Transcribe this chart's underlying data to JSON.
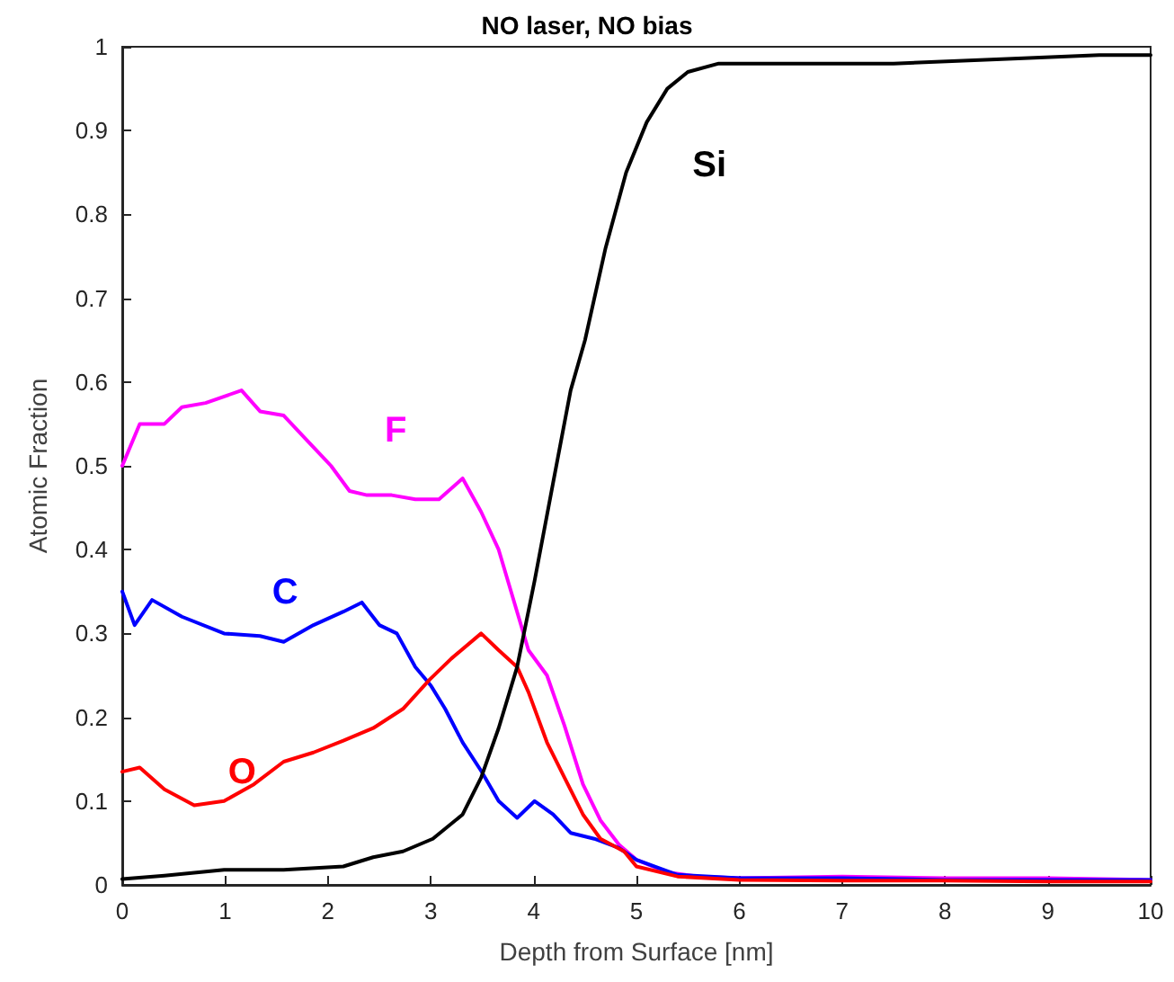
{
  "chart_data": {
    "type": "line",
    "title": "NO laser, NO bias",
    "xlabel": "Depth from Surface [nm]",
    "ylabel": "Atomic Fraction",
    "xlim": [
      0,
      10
    ],
    "xticks": [
      0,
      1,
      2,
      3,
      4,
      5,
      6,
      7,
      8,
      9,
      10
    ],
    "ylim": [
      0,
      1
    ],
    "yticks": [
      0,
      0.1,
      0.2,
      0.3,
      0.4,
      0.5,
      0.6,
      0.7,
      0.8,
      0.9,
      1
    ],
    "grid": false,
    "marker": "none",
    "line_style": "solid",
    "series": [
      {
        "name": "F",
        "color": "#ff00ff",
        "x": [
          0,
          0.17,
          0.41,
          0.58,
          0.81,
          1.16,
          1.34,
          1.57,
          1.8,
          2.03,
          2.21,
          2.38,
          2.62,
          2.85,
          3.08,
          3.31,
          3.49,
          3.66,
          3.95,
          4.13,
          4.3,
          4.48,
          4.65,
          4.83,
          5,
          5.3,
          5.6,
          6,
          7,
          8,
          9,
          10
        ],
        "values": [
          0.5,
          0.55,
          0.55,
          0.57,
          0.575,
          0.59,
          0.565,
          0.56,
          0.53,
          0.5,
          0.47,
          0.465,
          0.465,
          0.46,
          0.46,
          0.485,
          0.445,
          0.4,
          0.28,
          0.25,
          0.19,
          0.12,
          0.077,
          0.048,
          0.03,
          0.015,
          0.01,
          0.008,
          0.01,
          0.008,
          0.008,
          0.006
        ]
      },
      {
        "name": "C",
        "color": "#0000ff",
        "x": [
          0,
          0.12,
          0.29,
          0.58,
          0.99,
          1.34,
          1.57,
          1.86,
          2.15,
          2.33,
          2.5,
          2.67,
          2.85,
          3,
          3.14,
          3.31,
          3.49,
          3.66,
          3.84,
          4.01,
          4.19,
          4.36,
          4.59,
          4.83,
          5,
          5.4,
          6,
          7,
          8,
          9,
          10
        ],
        "values": [
          0.35,
          0.31,
          0.34,
          0.32,
          0.3,
          0.297,
          0.29,
          0.31,
          0.326,
          0.337,
          0.31,
          0.3,
          0.26,
          0.238,
          0.21,
          0.17,
          0.136,
          0.1,
          0.08,
          0.1,
          0.084,
          0.062,
          0.055,
          0.044,
          0.03,
          0.012,
          0.008,
          0.008,
          0.006,
          0.006,
          0.006
        ]
      },
      {
        "name": "O",
        "color": "#ff0000",
        "x": [
          0,
          0.17,
          0.41,
          0.7,
          0.99,
          1.28,
          1.57,
          1.86,
          2.15,
          2.44,
          2.73,
          2.99,
          3.2,
          3.49,
          3.66,
          3.84,
          3.95,
          4.13,
          4.3,
          4.48,
          4.65,
          4.88,
          5,
          5.4,
          6,
          7,
          8,
          9,
          10
        ],
        "values": [
          0.135,
          0.14,
          0.114,
          0.095,
          0.1,
          0.12,
          0.147,
          0.158,
          0.172,
          0.187,
          0.21,
          0.245,
          0.27,
          0.3,
          0.28,
          0.26,
          0.23,
          0.17,
          0.128,
          0.084,
          0.055,
          0.04,
          0.022,
          0.01,
          0.006,
          0.005,
          0.005,
          0.004,
          0.004
        ]
      },
      {
        "name": "Si",
        "color": "#000000",
        "x": [
          0,
          0.41,
          0.99,
          1.57,
          2.15,
          2.44,
          2.73,
          3.02,
          3.31,
          3.49,
          3.66,
          3.84,
          4.01,
          4.19,
          4.36,
          4.5,
          4.7,
          4.9,
          5.1,
          5.3,
          5.5,
          5.8,
          6.5,
          7.5,
          8.5,
          9.5,
          10
        ],
        "values": [
          0.007,
          0.011,
          0.018,
          0.018,
          0.022,
          0.033,
          0.04,
          0.055,
          0.084,
          0.128,
          0.187,
          0.26,
          0.363,
          0.48,
          0.59,
          0.65,
          0.76,
          0.85,
          0.91,
          0.95,
          0.97,
          0.98,
          0.98,
          0.98,
          0.985,
          0.99,
          0.99
        ]
      }
    ]
  }
}
